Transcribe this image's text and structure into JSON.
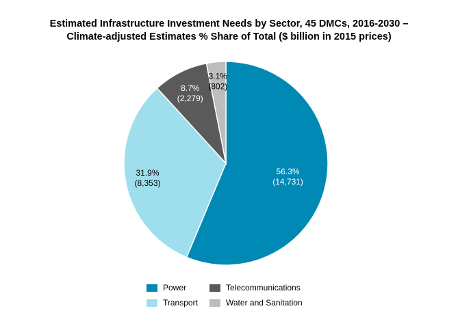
{
  "title": {
    "line1": "Estimated Infrastructure Investment Needs by Sector, 45 DMCs, 2016-2030 –",
    "line2": "Climate-adjusted Estimates % Share of Total ($ billion in 2015 prices)"
  },
  "chart_data": {
    "type": "pie",
    "title": "Estimated Infrastructure Investment Needs by Sector, 45 DMCs, 2016-2030 – Climate-adjusted Estimates % Share of Total ($ billion in 2015 prices)",
    "legend_position": "bottom",
    "slices": [
      {
        "name": "Power",
        "value": 14731,
        "percent_label": "56.3%",
        "value_label": "(14,731)",
        "color": "#0089b4",
        "label_color": "#ffffff"
      },
      {
        "name": "Transport",
        "value": 8353,
        "percent_label": "31.9%",
        "value_label": "(8,353)",
        "color": "#9fdfed",
        "label_color": "#000000"
      },
      {
        "name": "Telecommunications",
        "value": 2279,
        "percent_label": "8.7%",
        "value_label": "(2,279)",
        "color": "#5a5a5a",
        "label_color": "#ffffff"
      },
      {
        "name": "Water and Sanitation",
        "value": 802,
        "percent_label": "3.1%",
        "value_label": "(802)",
        "color": "#bdbdbd",
        "label_color": "#000000"
      }
    ]
  },
  "legend": [
    {
      "label": "Power",
      "color": "#0089b4"
    },
    {
      "label": "Telecommunications",
      "color": "#5a5a5a"
    },
    {
      "label": "Transport",
      "color": "#9fdfed"
    },
    {
      "label": "Water and Sanitation",
      "color": "#bdbdbd"
    }
  ]
}
